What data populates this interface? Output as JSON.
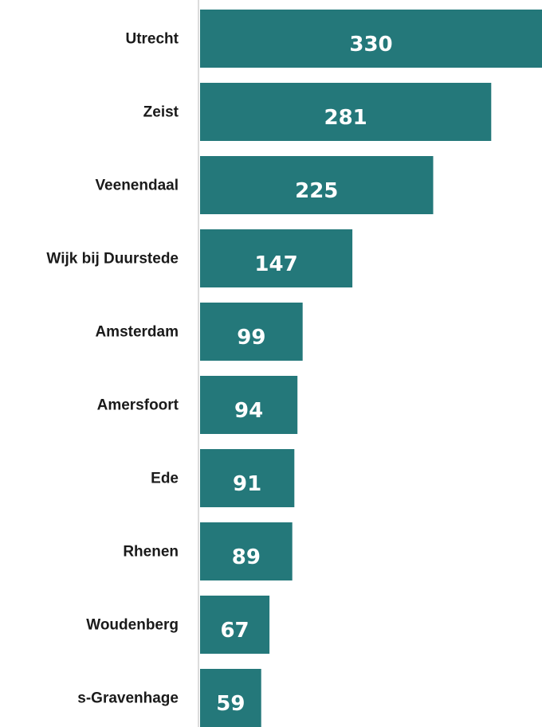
{
  "chart_data": {
    "type": "bar",
    "orientation": "horizontal",
    "categories": [
      "Utrecht",
      "Zeist",
      "Veenendaal",
      "Wijk bij Duurstede",
      "Amsterdam",
      "Amersfoort",
      "Ede",
      "Rhenen",
      "Woudenberg",
      "s-Gravenhage"
    ],
    "values": [
      330,
      281,
      225,
      147,
      99,
      94,
      91,
      89,
      67,
      59
    ],
    "data_labels": [
      "330",
      "281",
      "225",
      "147",
      "99",
      "94",
      "91",
      "89",
      "67",
      "59"
    ],
    "bar_color": "#24787a",
    "axis_color": "#d0d0d0",
    "grid": false,
    "legend": "none"
  }
}
